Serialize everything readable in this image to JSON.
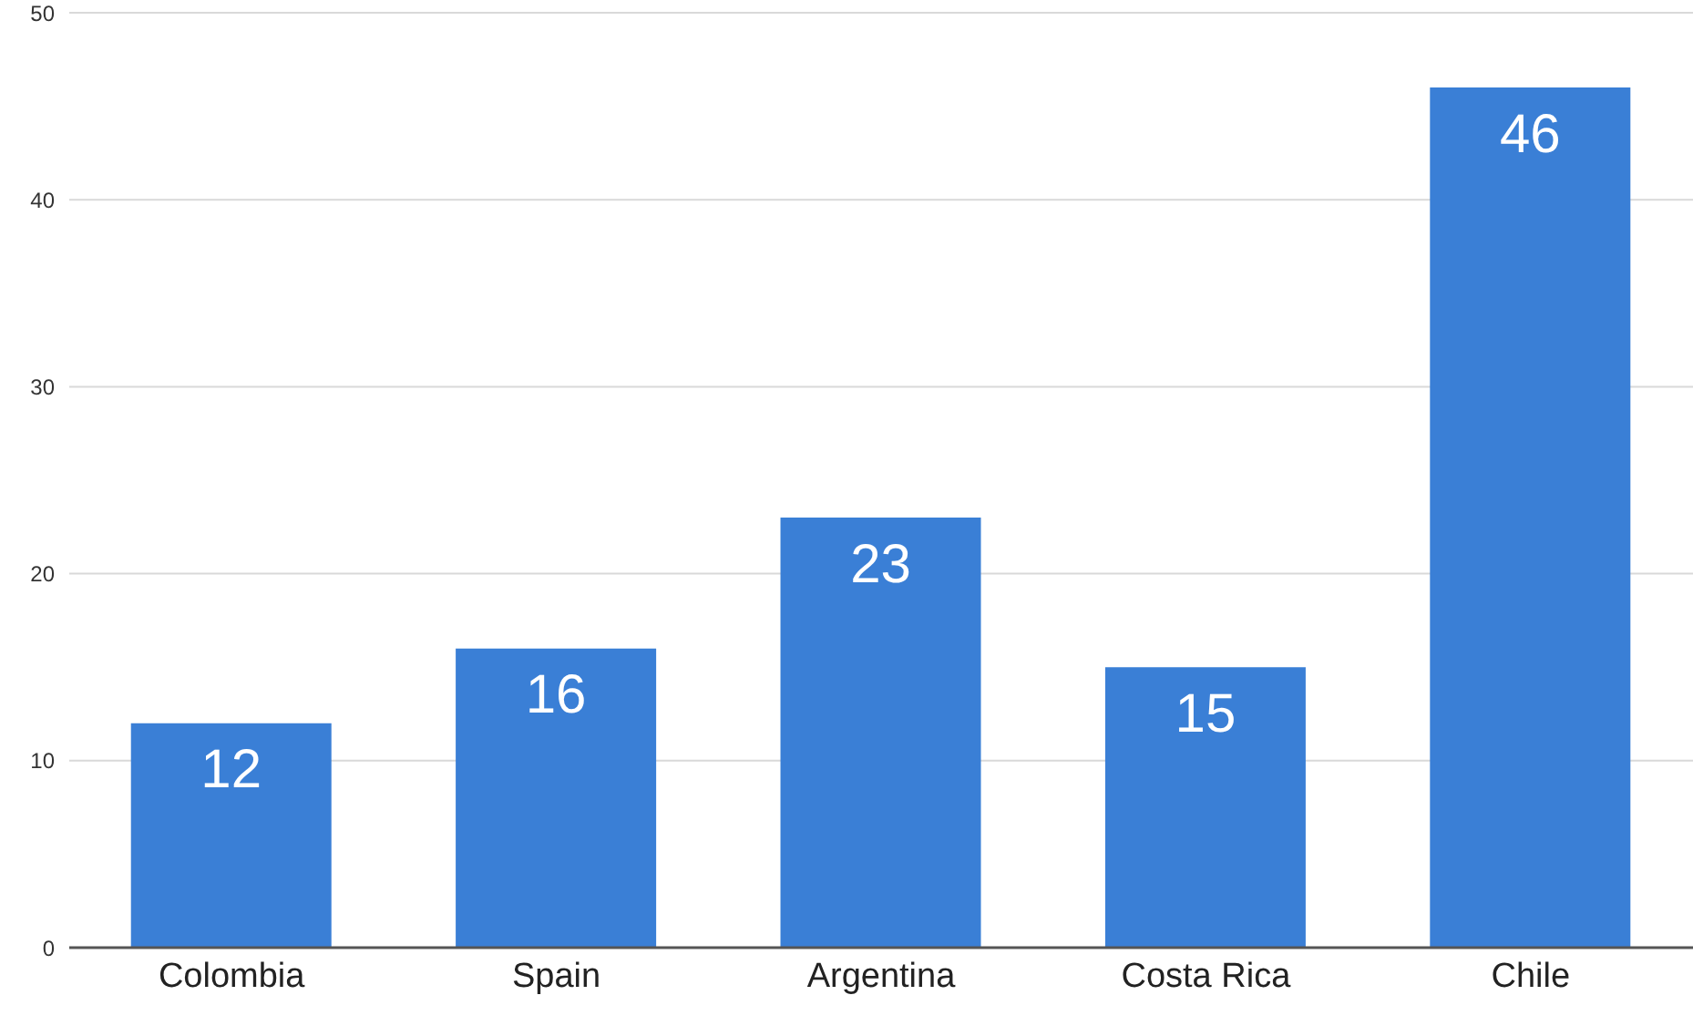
{
  "chart_data": {
    "type": "bar",
    "categories": [
      "Colombia",
      "Spain",
      "Argentina",
      "Costa Rica",
      "Chile"
    ],
    "values": [
      12,
      16,
      23,
      15,
      46
    ],
    "color": "#3a7fd6",
    "ylim": [
      0,
      50
    ],
    "yticks": [
      0,
      10,
      20,
      30,
      40,
      50
    ],
    "grid": "y",
    "data_labels": true
  }
}
